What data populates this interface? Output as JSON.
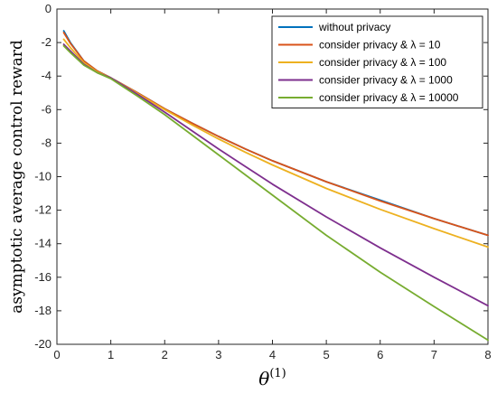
{
  "chart_data": {
    "type": "line",
    "xlabel": "θ(1)",
    "ylabel": "asymptotic average control reward",
    "xlim": [
      0,
      8
    ],
    "ylim": [
      -20,
      0
    ],
    "xticks": [
      "0",
      "1",
      "2",
      "3",
      "4",
      "5",
      "6",
      "7",
      "8"
    ],
    "yticks": [
      "0",
      "-2",
      "-4",
      "-6",
      "-8",
      "-10",
      "-12",
      "-14",
      "-16",
      "-18",
      "-20"
    ],
    "grid": false,
    "legend_position": "top-right",
    "x": [
      0.125,
      0.25,
      0.5,
      0.75,
      1,
      1.5,
      2,
      2.5,
      3,
      3.5,
      4,
      5,
      6,
      7,
      8
    ],
    "series": [
      {
        "name": "without privacy",
        "color": "#0072BD",
        "values": [
          -1.3,
          -2.0,
          -3.1,
          -3.7,
          -4.1,
          -5.0,
          -5.95,
          -6.8,
          -7.6,
          -8.35,
          -9.05,
          -10.3,
          -11.4,
          -12.5,
          -13.5
        ]
      },
      {
        "name": "consider privacy & λ = 10",
        "color": "#D95319",
        "values": [
          -1.4,
          -2.05,
          -3.1,
          -3.7,
          -4.1,
          -5.0,
          -5.95,
          -6.8,
          -7.6,
          -8.35,
          -9.05,
          -10.3,
          -11.45,
          -12.5,
          -13.5
        ]
      },
      {
        "name": "consider privacy & λ = 100",
        "color": "#EDB120",
        "values": [
          -1.8,
          -2.3,
          -3.2,
          -3.75,
          -4.1,
          -5.05,
          -6.0,
          -6.9,
          -7.75,
          -8.55,
          -9.3,
          -10.7,
          -11.95,
          -13.1,
          -14.2
        ]
      },
      {
        "name": "consider privacy & λ = 1000",
        "color": "#7E2F8E",
        "values": [
          -2.1,
          -2.5,
          -3.3,
          -3.8,
          -4.1,
          -5.1,
          -6.15,
          -7.25,
          -8.35,
          -9.4,
          -10.45,
          -12.4,
          -14.25,
          -16.0,
          -17.7
        ]
      },
      {
        "name": "consider privacy & λ = 10000",
        "color": "#77AC30",
        "values": [
          -2.2,
          -2.6,
          -3.35,
          -3.8,
          -4.15,
          -5.2,
          -6.3,
          -7.5,
          -8.7,
          -9.9,
          -11.1,
          -13.5,
          -15.7,
          -17.75,
          -19.75
        ]
      }
    ]
  }
}
